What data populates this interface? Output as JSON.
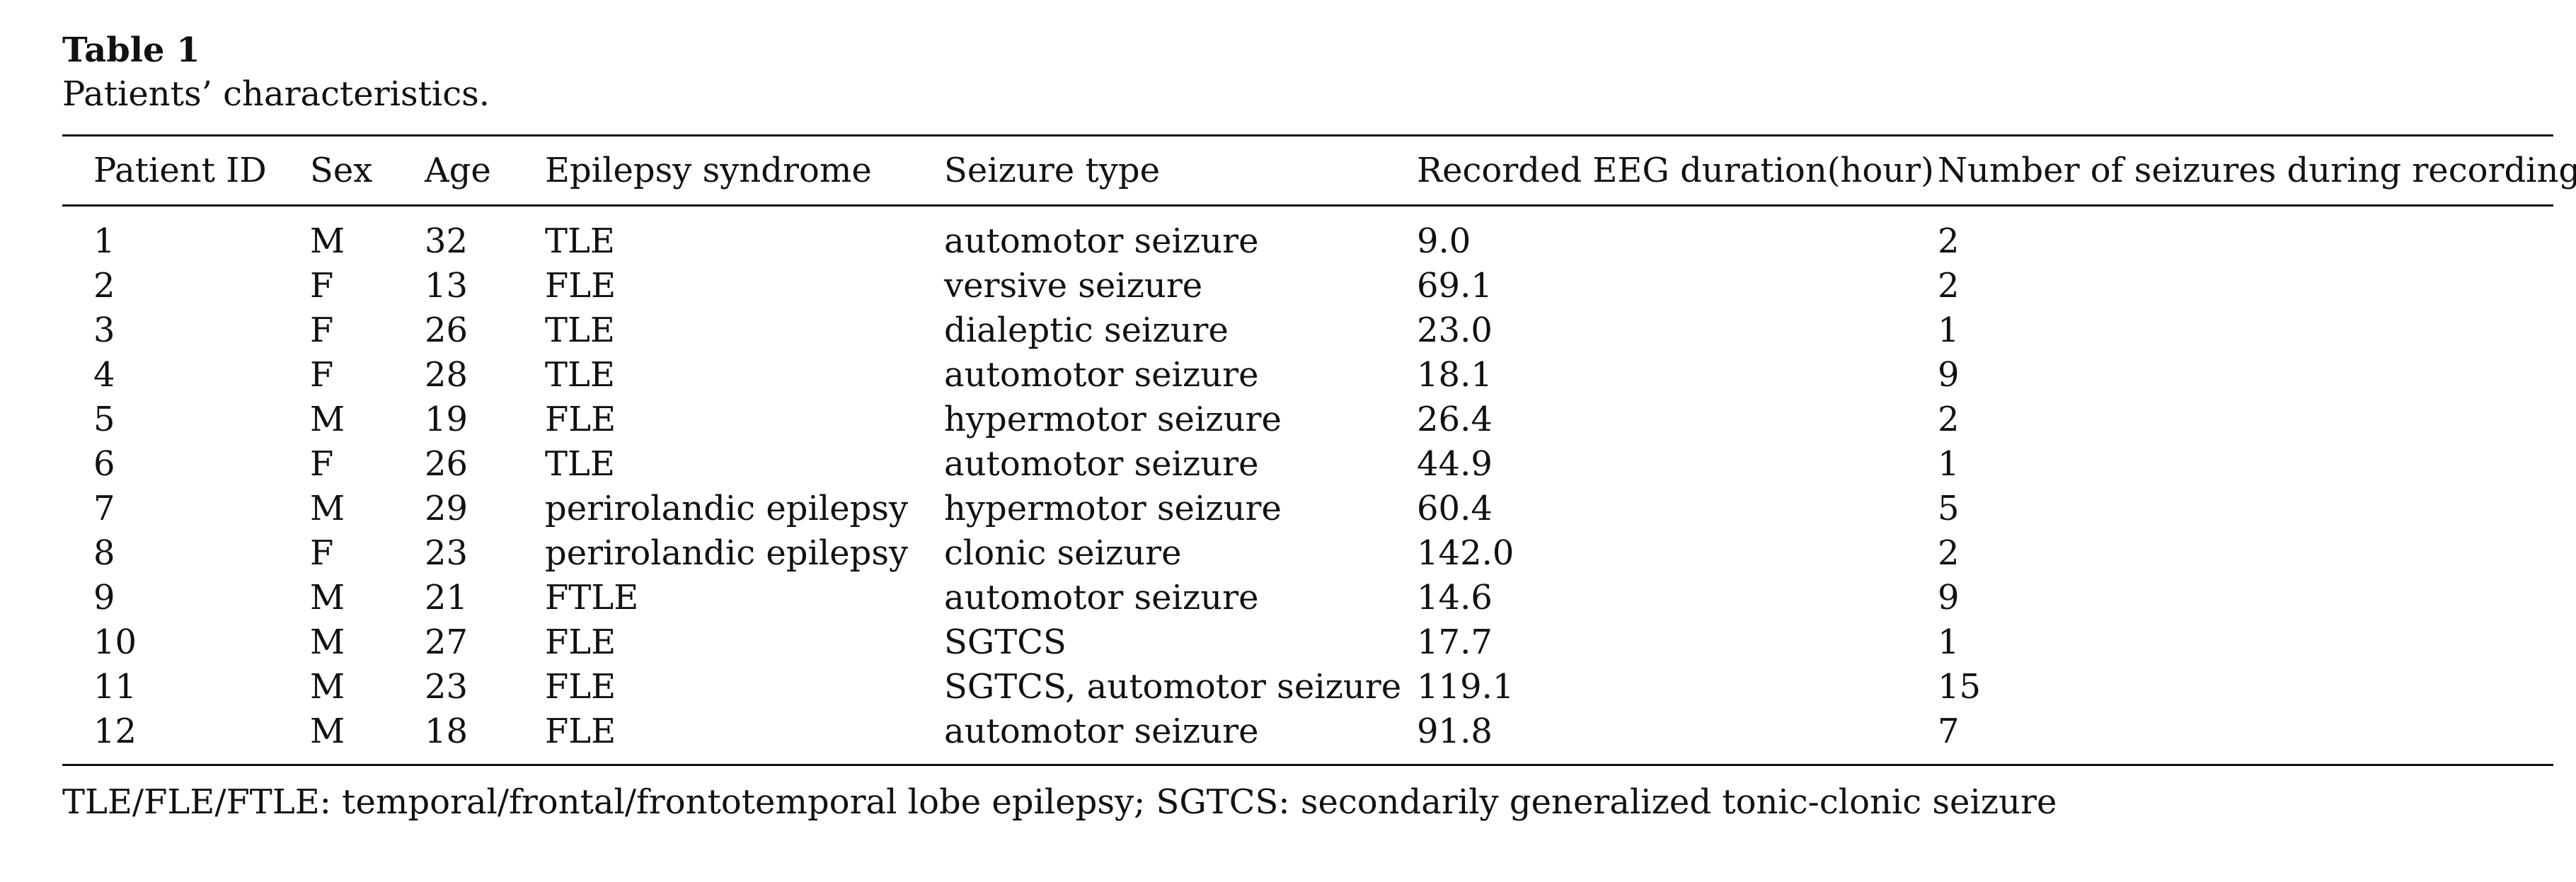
{
  "table": {
    "label": "Table 1",
    "caption": "Patients’ characteristics.",
    "columns": [
      "Patient ID",
      "Sex",
      "Age",
      "Epilepsy syndrome",
      "Seizure type",
      "Recorded EEG duration(hour)",
      "Number of seizures during recording"
    ],
    "rows": [
      [
        "1",
        "M",
        "32",
        "TLE",
        "automotor seizure",
        "9.0",
        "2"
      ],
      [
        "2",
        "F",
        "13",
        "FLE",
        "versive seizure",
        "69.1",
        "2"
      ],
      [
        "3",
        "F",
        "26",
        "TLE",
        "dialeptic seizure",
        "23.0",
        "1"
      ],
      [
        "4",
        "F",
        "28",
        "TLE",
        "automotor seizure",
        "18.1",
        "9"
      ],
      [
        "5",
        "M",
        "19",
        "FLE",
        "hypermotor seizure",
        "26.4",
        "2"
      ],
      [
        "6",
        "F",
        "26",
        "TLE",
        "automotor seizure",
        "44.9",
        "1"
      ],
      [
        "7",
        "M",
        "29",
        "perirolandic epilepsy",
        "hypermotor seizure",
        "60.4",
        "5"
      ],
      [
        "8",
        "F",
        "23",
        "perirolandic epilepsy",
        "clonic seizure",
        "142.0",
        "2"
      ],
      [
        "9",
        "M",
        "21",
        "FTLE",
        "automotor seizure",
        "14.6",
        "9"
      ],
      [
        "10",
        "M",
        "27",
        "FLE",
        "SGTCS",
        "17.7",
        "1"
      ],
      [
        "11",
        "M",
        "23",
        "FLE",
        "SGTCS, automotor seizure",
        "119.1",
        "15"
      ],
      [
        "12",
        "M",
        "18",
        "FLE",
        "automotor seizure",
        "91.8",
        "7"
      ]
    ],
    "footnote": "TLE/FLE/FTLE: temporal/frontal/frontotemporal lobe epilepsy; SGTCS: secondarily generalized tonic-clonic seizure"
  }
}
